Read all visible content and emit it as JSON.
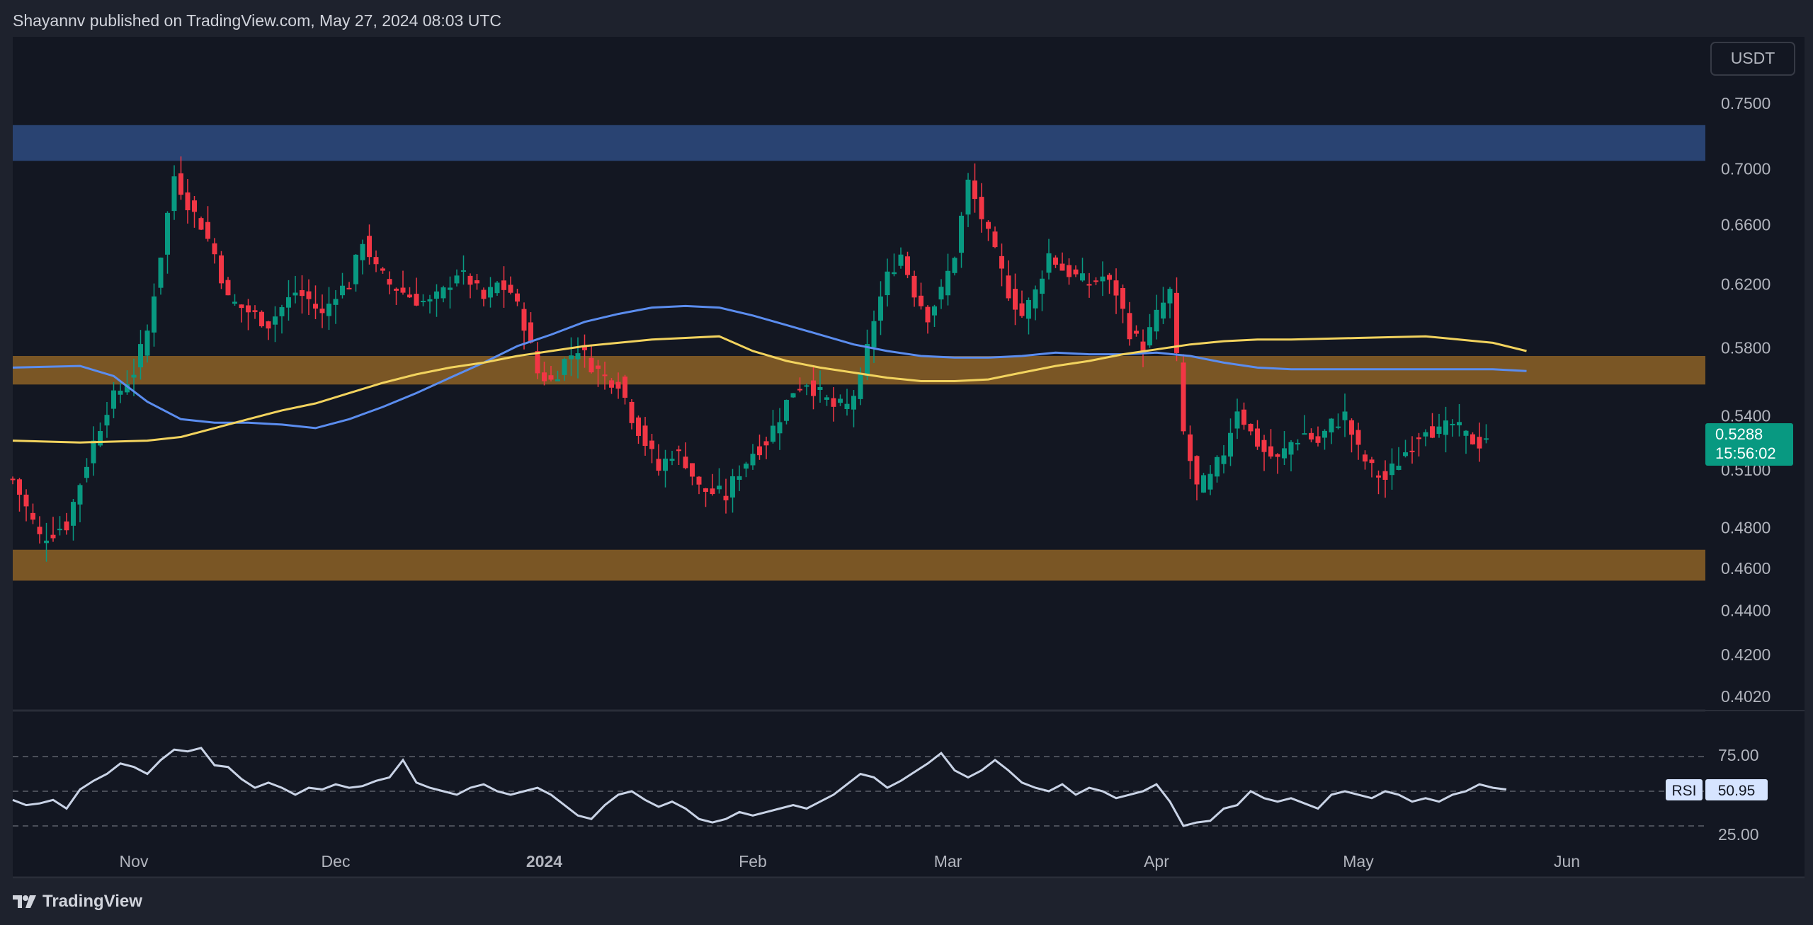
{
  "header": {
    "published_text": "Shayannv published on TradingView.com, May 27, 2024 08:03 UTC"
  },
  "footer": {
    "brand": "TradingView"
  },
  "currency_button": {
    "label": "USDT"
  },
  "price_badge": {
    "price": "0.5288",
    "countdown": "15:56:02",
    "color": "#089981"
  },
  "rsi_badge": {
    "label": "RSI",
    "value": "50.95"
  },
  "colors": {
    "background": "#131722",
    "frame": "#1e222d",
    "up_candle": "#089981",
    "down_candle": "#f23645",
    "ma_blue": "#5b8def",
    "ma_yellow": "#f2d35e",
    "supply_zone": "#2a4677",
    "sr_zone": "#7f5a26",
    "rsi_line": "#c9d3e6"
  },
  "chart_data": {
    "type": "candlestick",
    "price_axis": {
      "ticks": [
        "0.7500",
        "0.7000",
        "0.6600",
        "0.6200",
        "0.5800",
        "0.5400",
        "0.5100",
        "0.4800",
        "0.4600",
        "0.4400",
        "0.4200",
        "0.4020"
      ],
      "scale": "log"
    },
    "time_axis": {
      "labels": [
        "Nov",
        "Dec",
        "2024",
        "Feb",
        "Mar",
        "Apr",
        "May",
        "Jun"
      ],
      "label_days": [
        18,
        48,
        79,
        110,
        139,
        170,
        200,
        231
      ]
    },
    "zones": [
      {
        "name": "supply",
        "from": 0.706,
        "to": 0.733
      },
      {
        "name": "resistance",
        "from": 0.558,
        "to": 0.575
      },
      {
        "name": "support",
        "from": 0.454,
        "to": 0.469
      }
    ],
    "moving_averages": [
      {
        "name": "ma-blue",
        "points": [
          [
            0,
            0.568
          ],
          [
            10,
            0.569
          ],
          [
            15,
            0.563
          ],
          [
            20,
            0.548
          ],
          [
            25,
            0.538
          ],
          [
            30,
            0.536
          ],
          [
            35,
            0.536
          ],
          [
            40,
            0.535
          ],
          [
            45,
            0.533
          ],
          [
            50,
            0.538
          ],
          [
            55,
            0.545
          ],
          [
            60,
            0.553
          ],
          [
            65,
            0.562
          ],
          [
            70,
            0.571
          ],
          [
            75,
            0.581
          ],
          [
            80,
            0.588
          ],
          [
            85,
            0.596
          ],
          [
            90,
            0.601
          ],
          [
            95,
            0.605
          ],
          [
            100,
            0.606
          ],
          [
            105,
            0.605
          ],
          [
            110,
            0.6
          ],
          [
            115,
            0.594
          ],
          [
            120,
            0.588
          ],
          [
            125,
            0.582
          ],
          [
            130,
            0.578
          ],
          [
            135,
            0.575
          ],
          [
            140,
            0.574
          ],
          [
            145,
            0.574
          ],
          [
            150,
            0.575
          ],
          [
            155,
            0.577
          ],
          [
            160,
            0.576
          ],
          [
            165,
            0.576
          ],
          [
            170,
            0.577
          ],
          [
            175,
            0.575
          ],
          [
            180,
            0.571
          ],
          [
            185,
            0.568
          ],
          [
            190,
            0.567
          ],
          [
            200,
            0.567
          ],
          [
            210,
            0.567
          ],
          [
            220,
            0.567
          ],
          [
            225,
            0.566
          ]
        ]
      },
      {
        "name": "ma-yellow",
        "points": [
          [
            0,
            0.526
          ],
          [
            10,
            0.525
          ],
          [
            20,
            0.526
          ],
          [
            25,
            0.528
          ],
          [
            30,
            0.533
          ],
          [
            35,
            0.538
          ],
          [
            40,
            0.543
          ],
          [
            45,
            0.547
          ],
          [
            50,
            0.553
          ],
          [
            55,
            0.559
          ],
          [
            60,
            0.564
          ],
          [
            65,
            0.568
          ],
          [
            70,
            0.571
          ],
          [
            75,
            0.575
          ],
          [
            80,
            0.578
          ],
          [
            85,
            0.581
          ],
          [
            90,
            0.583
          ],
          [
            95,
            0.585
          ],
          [
            100,
            0.586
          ],
          [
            105,
            0.587
          ],
          [
            110,
            0.578
          ],
          [
            115,
            0.572
          ],
          [
            120,
            0.568
          ],
          [
            125,
            0.565
          ],
          [
            130,
            0.562
          ],
          [
            135,
            0.56
          ],
          [
            140,
            0.56
          ],
          [
            145,
            0.561
          ],
          [
            150,
            0.565
          ],
          [
            155,
            0.569
          ],
          [
            160,
            0.572
          ],
          [
            165,
            0.576
          ],
          [
            170,
            0.579
          ],
          [
            175,
            0.582
          ],
          [
            180,
            0.584
          ],
          [
            185,
            0.585
          ],
          [
            190,
            0.585
          ],
          [
            200,
            0.586
          ],
          [
            210,
            0.587
          ],
          [
            220,
            0.583
          ],
          [
            225,
            0.578
          ]
        ]
      }
    ],
    "rsi": {
      "ticks": [
        "75.00",
        "25.00"
      ],
      "levels": [
        70,
        50,
        30
      ],
      "last_value": 50.95,
      "points": [
        [
          0,
          45
        ],
        [
          2,
          42
        ],
        [
          4,
          43
        ],
        [
          6,
          45
        ],
        [
          8,
          40
        ],
        [
          10,
          51
        ],
        [
          12,
          56
        ],
        [
          14,
          60
        ],
        [
          16,
          66
        ],
        [
          18,
          64
        ],
        [
          20,
          60
        ],
        [
          22,
          68
        ],
        [
          24,
          74
        ],
        [
          26,
          73
        ],
        [
          28,
          75
        ],
        [
          30,
          65
        ],
        [
          32,
          64
        ],
        [
          34,
          57
        ],
        [
          36,
          52
        ],
        [
          38,
          55
        ],
        [
          40,
          52
        ],
        [
          42,
          48
        ],
        [
          44,
          52
        ],
        [
          46,
          51
        ],
        [
          48,
          54
        ],
        [
          50,
          52
        ],
        [
          52,
          53
        ],
        [
          54,
          56
        ],
        [
          56,
          58
        ],
        [
          58,
          68
        ],
        [
          60,
          55
        ],
        [
          62,
          52
        ],
        [
          64,
          50
        ],
        [
          66,
          48
        ],
        [
          68,
          52
        ],
        [
          70,
          54
        ],
        [
          72,
          50
        ],
        [
          74,
          48
        ],
        [
          76,
          50
        ],
        [
          78,
          52
        ],
        [
          80,
          48
        ],
        [
          82,
          42
        ],
        [
          84,
          36
        ],
        [
          86,
          34
        ],
        [
          88,
          42
        ],
        [
          90,
          48
        ],
        [
          92,
          50
        ],
        [
          94,
          45
        ],
        [
          96,
          41
        ],
        [
          98,
          44
        ],
        [
          100,
          40
        ],
        [
          102,
          34
        ],
        [
          104,
          32
        ],
        [
          106,
          34
        ],
        [
          108,
          38
        ],
        [
          110,
          36
        ],
        [
          112,
          38
        ],
        [
          114,
          40
        ],
        [
          116,
          42
        ],
        [
          118,
          40
        ],
        [
          120,
          44
        ],
        [
          122,
          48
        ],
        [
          124,
          54
        ],
        [
          126,
          60
        ],
        [
          128,
          58
        ],
        [
          130,
          52
        ],
        [
          132,
          56
        ],
        [
          134,
          61
        ],
        [
          136,
          66
        ],
        [
          138,
          72
        ],
        [
          140,
          62
        ],
        [
          142,
          58
        ],
        [
          144,
          62
        ],
        [
          146,
          68
        ],
        [
          148,
          62
        ],
        [
          150,
          55
        ],
        [
          152,
          52
        ],
        [
          154,
          50
        ],
        [
          156,
          54
        ],
        [
          158,
          48
        ],
        [
          160,
          52
        ],
        [
          162,
          50
        ],
        [
          164,
          46
        ],
        [
          166,
          48
        ],
        [
          168,
          50
        ],
        [
          170,
          54
        ],
        [
          172,
          44
        ],
        [
          174,
          30
        ],
        [
          176,
          32
        ],
        [
          178,
          33
        ],
        [
          180,
          40
        ],
        [
          182,
          42
        ],
        [
          184,
          50
        ],
        [
          186,
          46
        ],
        [
          188,
          44
        ],
        [
          190,
          46
        ],
        [
          192,
          43
        ],
        [
          194,
          40
        ],
        [
          196,
          48
        ],
        [
          198,
          50
        ],
        [
          200,
          48
        ],
        [
          202,
          46
        ],
        [
          204,
          50
        ],
        [
          206,
          48
        ],
        [
          208,
          44
        ],
        [
          210,
          46
        ],
        [
          212,
          44
        ],
        [
          214,
          48
        ],
        [
          216,
          50
        ],
        [
          218,
          54
        ],
        [
          220,
          52
        ],
        [
          222,
          51
        ]
      ]
    }
  }
}
